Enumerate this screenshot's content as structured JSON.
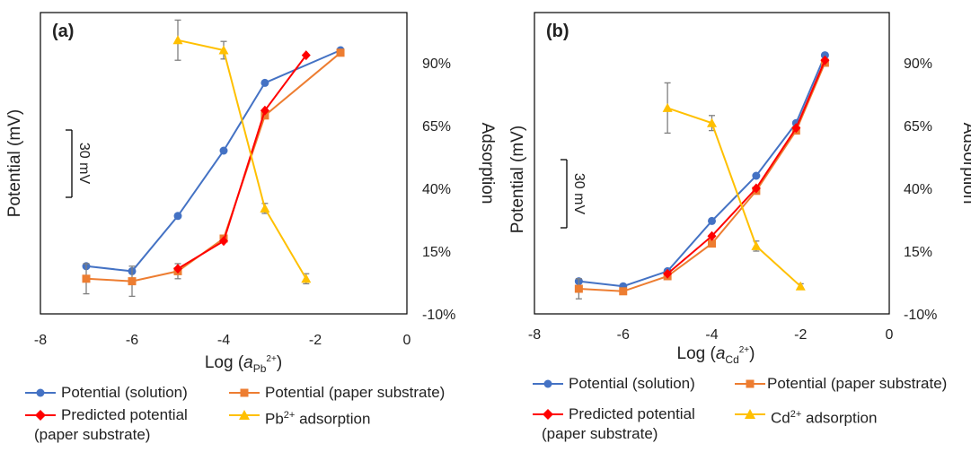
{
  "chart_data": [
    {
      "type": "line",
      "panel_label": "(a)",
      "ylabel_left": "Potential (mV)",
      "ylabel_right": "Adsorption",
      "xlabel_prefix": "Log (",
      "xlabel_var": "a",
      "xlabel_sub": "Pb",
      "xlabel_sup": "2+",
      "xlabel_suffix": ")",
      "scale_bar_label": "30 mV",
      "xlim": [
        -8,
        0
      ],
      "x_ticks": [
        "-8",
        "-6",
        "-4",
        "-2",
        "0"
      ],
      "right_ylim": [
        -10,
        110
      ],
      "right_ticks": [
        "-10%",
        "15%",
        "40%",
        "65%",
        "90%"
      ],
      "left_ylim": [
        -110,
        10
      ],
      "series": [
        {
          "name": "Potential (solution)",
          "axis": "left",
          "color": "#4472C4",
          "marker": "circle",
          "x": [
            -7,
            -6,
            -5,
            -4,
            -3.1,
            -1.45
          ],
          "y": [
            -91,
            -93,
            -71,
            -45,
            -18,
            -5
          ]
        },
        {
          "name": "Potential (paper substrate)",
          "axis": "left",
          "color": "#ED7D31",
          "marker": "square",
          "x": [
            -7,
            -6,
            -5,
            -4,
            -3.1,
            -1.45
          ],
          "y": [
            -96,
            -97,
            -93,
            -80,
            -31,
            -6
          ],
          "err": [
            6,
            6,
            3,
            0,
            0,
            0
          ]
        },
        {
          "name": "Predicted potential (paper substrate)",
          "axis": "left",
          "color": "#FF0000",
          "marker": "diamond",
          "x": [
            -5,
            -4,
            -3.1,
            -2.2
          ],
          "y": [
            -92,
            -81,
            -29,
            -7
          ]
        },
        {
          "name": "Pb2+ adsorption",
          "axis": "right",
          "color": "#FFC000",
          "marker": "triangle",
          "x": [
            -5,
            -4,
            -3.1,
            -2.2
          ],
          "y": [
            99,
            95,
            32,
            4
          ],
          "err": [
            8,
            3.5,
            2,
            2
          ]
        }
      ],
      "legend": [
        "Potential (solution)",
        "Potential (paper substrate)",
        "Predicted potential",
        "(paper substrate)",
        "Pb",
        "2+",
        " adsorption"
      ]
    },
    {
      "type": "line",
      "panel_label": "(b)",
      "ylabel_left": "Potential (mV)",
      "ylabel_right": "Adsorption",
      "xlabel_prefix": "Log (",
      "xlabel_var": "a",
      "xlabel_sub": "Cd",
      "xlabel_sup": "2+",
      "xlabel_suffix": ")",
      "scale_bar_label": "30 mV",
      "xlim": [
        -8,
        0
      ],
      "x_ticks": [
        "-8",
        "-6",
        "-4",
        "-2",
        "0"
      ],
      "right_ylim": [
        -10,
        110
      ],
      "right_ticks": [
        "-10%",
        "15%",
        "40%",
        "65%",
        "90%"
      ],
      "left_ylim": [
        -110,
        10
      ],
      "series": [
        {
          "name": "Potential (solution)",
          "axis": "left",
          "color": "#4472C4",
          "marker": "circle",
          "x": [
            -7,
            -6,
            -5,
            -4,
            -3,
            -2.1,
            -1.45
          ],
          "y": [
            -97,
            -99,
            -93,
            -73,
            -55,
            -34,
            -7
          ]
        },
        {
          "name": "Potential (paper substrate)",
          "axis": "left",
          "color": "#ED7D31",
          "marker": "square",
          "x": [
            -7,
            -6,
            -5,
            -4,
            -3,
            -2.1,
            -1.45
          ],
          "y": [
            -100,
            -101,
            -95,
            -82,
            -61,
            -37,
            -10
          ],
          "err": [
            4,
            0,
            0,
            0,
            0,
            0,
            0
          ]
        },
        {
          "name": "Predicted potential (paper substrate)",
          "axis": "left",
          "color": "#FF0000",
          "marker": "diamond",
          "x": [
            -5,
            -4,
            -3,
            -2.1,
            -1.45
          ],
          "y": [
            -94,
            -79,
            -60,
            -36,
            -9
          ]
        },
        {
          "name": "Cd2+ adsorption",
          "axis": "right",
          "color": "#FFC000",
          "marker": "triangle",
          "x": [
            -5,
            -4,
            -3,
            -2
          ],
          "y": [
            72,
            66,
            17,
            1
          ],
          "err": [
            10,
            3,
            2,
            1
          ]
        }
      ],
      "legend": [
        "Potential (solution)",
        "Potential (paper substrate)",
        "Predicted potential",
        "(paper substrate)",
        "Cd",
        "2+",
        " adsorption"
      ]
    }
  ]
}
